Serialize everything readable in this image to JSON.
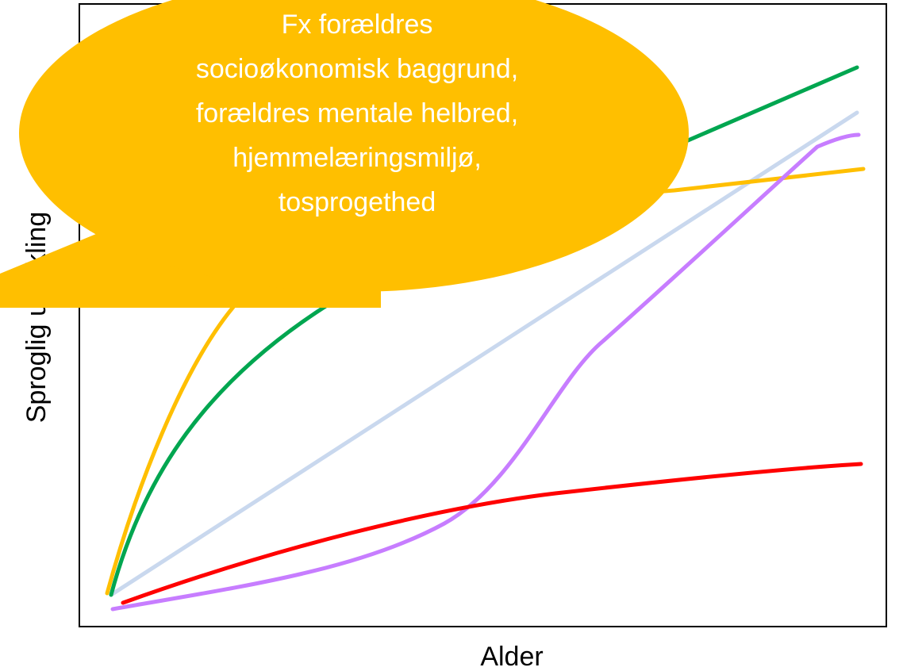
{
  "axes": {
    "x_label": "Alder",
    "y_label": "Sproglig udvikling"
  },
  "callout": {
    "lines": [
      "Fx forældres",
      "socioøkonomisk baggrund,",
      "forældres mentale helbred,",
      "hjemmelæringsmiljø,",
      "tosprogethed"
    ]
  }
}
